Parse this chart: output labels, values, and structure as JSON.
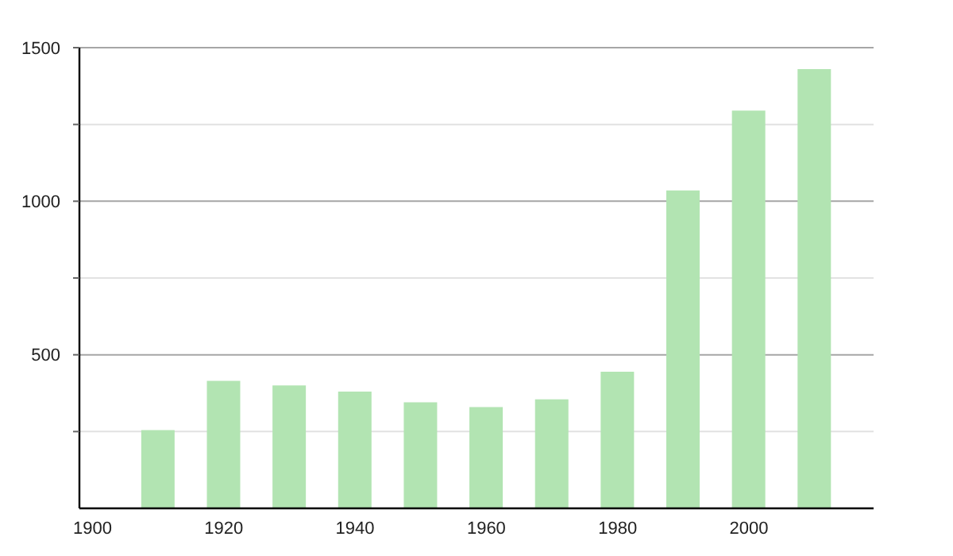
{
  "chart_data": {
    "type": "bar",
    "x": [
      1910,
      1920,
      1930,
      1940,
      1950,
      1960,
      1970,
      1980,
      1990,
      2000,
      2010
    ],
    "values": [
      255,
      415,
      400,
      380,
      345,
      330,
      355,
      445,
      1035,
      1295,
      1430
    ],
    "color": "#b2e4b2",
    "xlim": [
      1898,
      2019
    ],
    "xticks": [
      1900,
      1920,
      1940,
      1960,
      1980,
      2000
    ],
    "ylim": [
      0,
      1500
    ],
    "yticks": [
      {
        "value": 250,
        "label": null
      },
      500,
      {
        "value": 750,
        "label": null
      },
      1000,
      {
        "value": 1250,
        "label": null
      },
      1500
    ],
    "grid": "y"
  }
}
